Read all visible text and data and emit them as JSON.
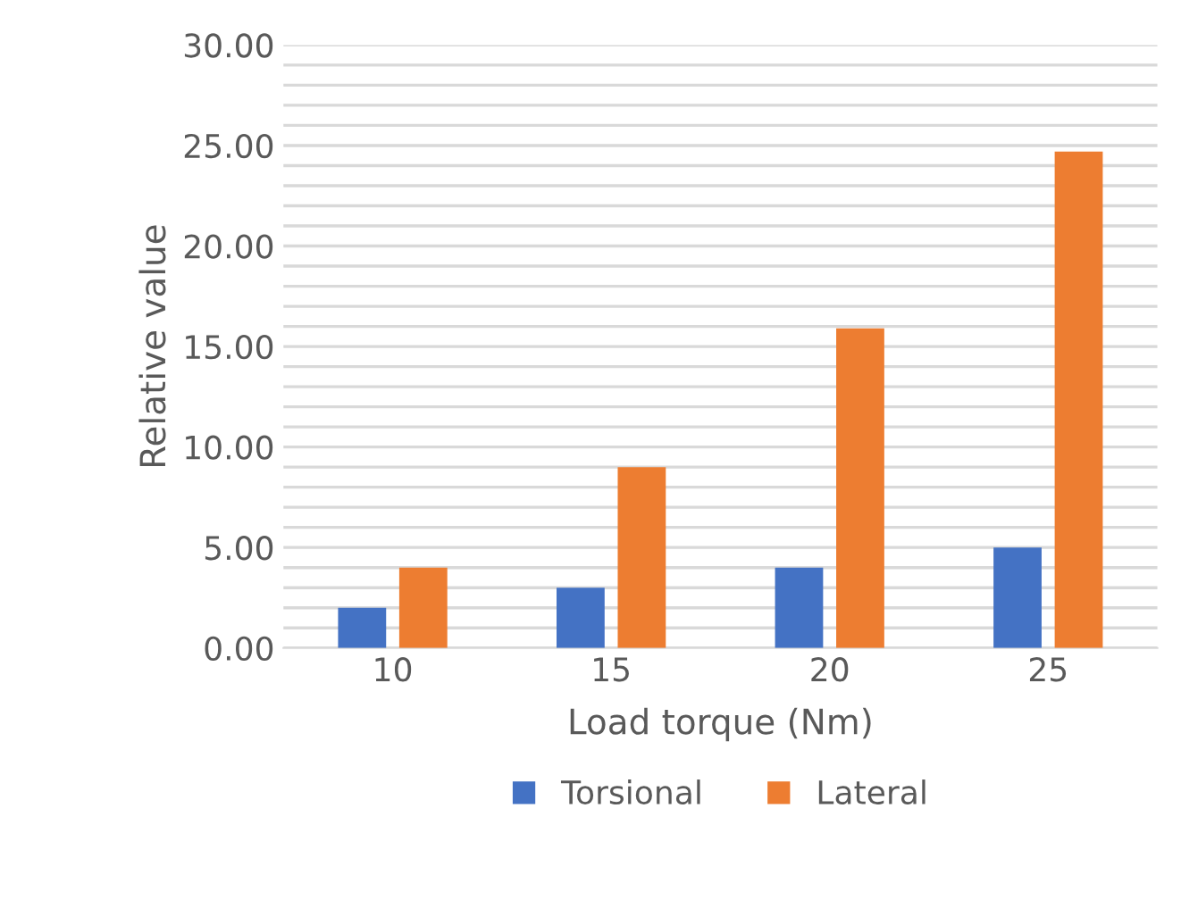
{
  "chart_data": {
    "type": "bar",
    "xlabel": "Load torque (Nm)",
    "ylabel": "Relative value",
    "categories": [
      "10",
      "15",
      "20",
      "25"
    ],
    "series": [
      {
        "name": "Torsional",
        "color": "#4472c4",
        "values": [
          2,
          3,
          4,
          5
        ]
      },
      {
        "name": "Lateral",
        "color": "#ed7d31",
        "values": [
          4,
          9,
          15.9,
          24.7
        ]
      }
    ],
    "ylim": [
      0,
      30
    ],
    "yticks": [
      {
        "value": 0,
        "label": "0.00"
      },
      {
        "value": 1,
        "label": null
      },
      {
        "value": 2,
        "label": null
      },
      {
        "value": 3,
        "label": null
      },
      {
        "value": 4,
        "label": null
      },
      {
        "value": 5,
        "label": "5.00"
      },
      {
        "value": 6,
        "label": null
      },
      {
        "value": 7,
        "label": null
      },
      {
        "value": 8,
        "label": null
      },
      {
        "value": 9,
        "label": null
      },
      {
        "value": 10,
        "label": "10.00"
      },
      {
        "value": 11,
        "label": null
      },
      {
        "value": 12,
        "label": null
      },
      {
        "value": 13,
        "label": null
      },
      {
        "value": 14,
        "label": null
      },
      {
        "value": 15,
        "label": "15.00"
      },
      {
        "value": 16,
        "label": null
      },
      {
        "value": 17,
        "label": null
      },
      {
        "value": 18,
        "label": null
      },
      {
        "value": 19,
        "label": null
      },
      {
        "value": 20,
        "label": "20.00"
      },
      {
        "value": 21,
        "label": null
      },
      {
        "value": 22,
        "label": null
      },
      {
        "value": 23,
        "label": null
      },
      {
        "value": 24,
        "label": null
      },
      {
        "value": 25,
        "label": "25.00"
      },
      {
        "value": 26,
        "label": null
      },
      {
        "value": 27,
        "label": null
      },
      {
        "value": 28,
        "label": null
      },
      {
        "value": 29,
        "label": null
      },
      {
        "value": 30,
        "label": "30.00"
      }
    ],
    "grid": "y",
    "legend": "bottom"
  }
}
